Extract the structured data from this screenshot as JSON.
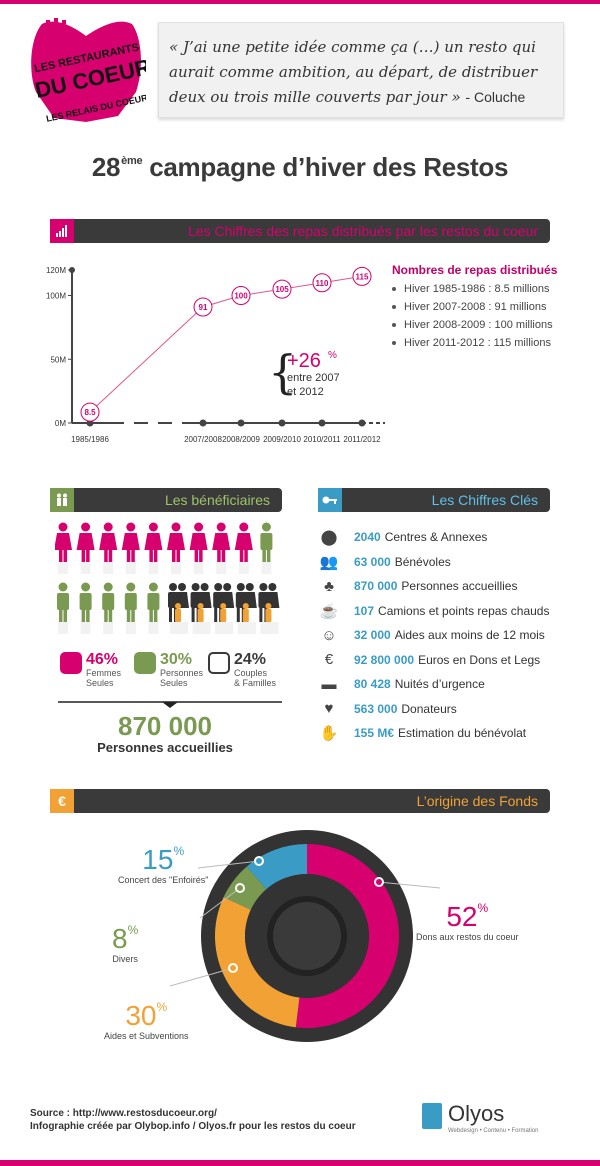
{
  "logo": {
    "line1": "LES RESTAURANTS",
    "line2": "DU COEUR",
    "line3": "LES RELAIS DU COEUR"
  },
  "quote": {
    "text": "« J’ai une petite idée comme ça (…) un resto qui aurait comme ambition, au départ, de distribuer deux ou trois mille couverts par jour »",
    "author": "- Coluche"
  },
  "title": {
    "sup": "ème",
    "num": "28",
    "rest": "campagne d’hiver des Restos"
  },
  "sections": {
    "repas": "Les Chiffres des repas distribués par les restos du coeur",
    "beneficiaires": "Les bénéficiaires",
    "cles": "Les Chiffres Clés",
    "fonds": "L’origine des Fonds"
  },
  "colors": {
    "pink": "#d6006f",
    "green": "#7a9a51",
    "orange": "#f2a234",
    "blue": "#3a9cc4",
    "dark": "#3a3a3a"
  },
  "chart_data": [
    {
      "type": "line",
      "title": "Les Chiffres des repas distribués par les restos du coeur",
      "categories": [
        "1985/1986",
        "2007/2008",
        "2008/2009",
        "2009/2010",
        "2010/2011",
        "2011/2012"
      ],
      "values": [
        8.5,
        91,
        100,
        105,
        110,
        115
      ],
      "value_labels": [
        "8.5",
        "91",
        "100",
        "105",
        "110",
        "115"
      ],
      "y_ticks": [
        "0M",
        "50M",
        "100M",
        "120M"
      ],
      "ylim": [
        0,
        120
      ],
      "annotation": {
        "value": "+26",
        "unit": "%",
        "text1": "entre 2007",
        "text2": "et 2012"
      },
      "legend": {
        "title": "Nombres de repas distribués",
        "items": [
          "Hiver 1985-1986 : 8.5 millions",
          "Hiver 2007-2008 : 91 millions",
          "Hiver 2008-2009 : 100 millions",
          "Hiver 2011-2012 : 115 millions"
        ]
      }
    },
    {
      "type": "pie",
      "title": "L’origine des Fonds",
      "slices": [
        {
          "label": "Dons aux restos du coeur",
          "value": 52,
          "color": "#d6006f"
        },
        {
          "label": "Aides et Subventions",
          "value": 30,
          "color": "#f2a234"
        },
        {
          "label": "Divers",
          "value": 8,
          "color": "#7a9a51"
        },
        {
          "label": "Concert des \"Enfoirés\"",
          "value": 15,
          "color": "#3a9cc4"
        }
      ],
      "unit": "%"
    }
  ],
  "beneficiaires": {
    "rows": [
      [
        "f",
        "f",
        "f",
        "f",
        "f",
        "f",
        "f",
        "f",
        "f",
        "m"
      ],
      [
        "m",
        "m",
        "m",
        "m",
        "m",
        "c",
        "c",
        "c",
        "c",
        "c"
      ]
    ],
    "legend": [
      {
        "pct": "46%",
        "l1": "Femmes",
        "l2": "Seules",
        "color": "#d6006f"
      },
      {
        "pct": "30%",
        "l1": "Personnes",
        "l2": "Seules",
        "color": "#7a9a51"
      },
      {
        "pct": "24%",
        "l1": "Couples",
        "l2": "& Familles",
        "color": "#3a3a3a"
      }
    ],
    "total": "870 000",
    "total_caption": "Personnes accueillies"
  },
  "cles": [
    {
      "icon": "location-pin-icon",
      "value": "2040",
      "label": "Centres & Annexes"
    },
    {
      "icon": "volunteers-icon",
      "value": "63 000",
      "label": "Bénévoles"
    },
    {
      "icon": "family-icon",
      "value": "870 000",
      "label": "Personnes accueillies"
    },
    {
      "icon": "hot-cup-icon",
      "value": "107",
      "label": "Camions et points repas chauds"
    },
    {
      "icon": "baby-icon",
      "value": "32 000",
      "label": "Aides aux moins de 12 mois"
    },
    {
      "icon": "euro-icon",
      "value": "92 800 000",
      "label": "Euros en Dons et Legs"
    },
    {
      "icon": "bed-icon",
      "value": "80 428",
      "label": "Nuités d’urgence"
    },
    {
      "icon": "heart-icon",
      "value": "563 000",
      "label": "Donateurs"
    },
    {
      "icon": "hand-icon",
      "value": "155 M€",
      "label": "Estimation du bénévolat"
    }
  ],
  "footer": {
    "source": "Source : http://www.restosducoeur.org/",
    "credit": "Infographie créée par Olybop.info / Olyos.fr pour les restos du coeur",
    "brand": "Olyos",
    "brand_sub": "Webdesign • Contenu • Formation"
  }
}
